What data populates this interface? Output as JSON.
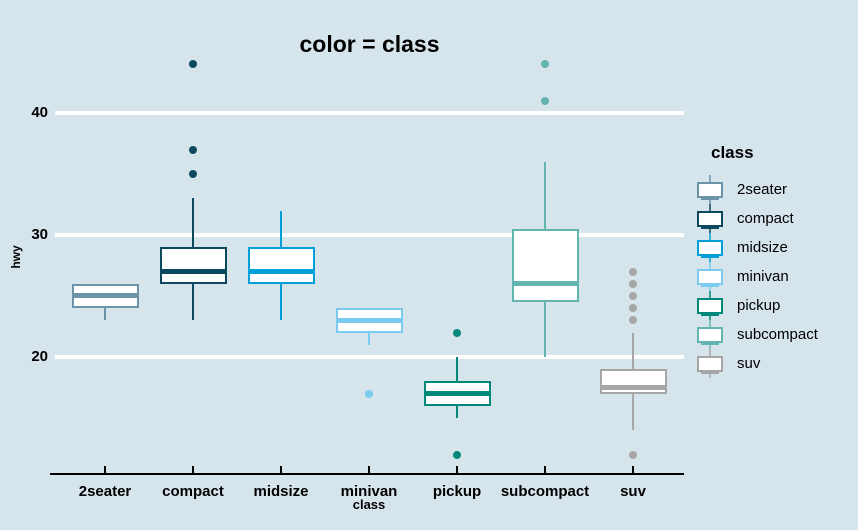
{
  "figure": {
    "background_color": "#d6e4ec",
    "grid_color": "#ffffff",
    "axis_color": "#000000",
    "text_color": "#000000"
  },
  "chart_data": {
    "type": "boxplot",
    "title": "color = class",
    "xlabel": "class",
    "ylabel": "hwy",
    "categories": [
      "2seater",
      "compact",
      "midsize",
      "minivan",
      "pickup",
      "subcompact",
      "suv"
    ],
    "y_ticks": [
      20,
      30,
      40
    ],
    "ylim": [
      10.5,
      45.5
    ],
    "grid": "horizontal white gridlines at y ticks",
    "legend": {
      "title": "class",
      "position": "right",
      "entries": [
        "2seater",
        "compact",
        "midsize",
        "minivan",
        "pickup",
        "subcompact",
        "suv"
      ]
    },
    "series": [
      {
        "name": "2seater",
        "color": "#6d93a8",
        "whisker_low": 23,
        "q1": 24,
        "median": 25,
        "q3": 26,
        "whisker_high": 26,
        "outliers": []
      },
      {
        "name": "compact",
        "color": "#0b4a5e",
        "whisker_low": 23,
        "q1": 26,
        "median": 27,
        "q3": 29,
        "whisker_high": 33,
        "outliers": [
          35,
          37,
          44
        ]
      },
      {
        "name": "midsize",
        "color": "#009fd7",
        "whisker_low": 23,
        "q1": 26,
        "median": 27,
        "q3": 29,
        "whisker_high": 32,
        "outliers": []
      },
      {
        "name": "minivan",
        "color": "#7bcaf0",
        "whisker_low": 21,
        "q1": 22,
        "median": 23,
        "q3": 24,
        "whisker_high": 24,
        "outliers": [
          17
        ]
      },
      {
        "name": "pickup",
        "color": "#00887b",
        "whisker_low": 15,
        "q1": 16,
        "median": 17,
        "q3": 18,
        "whisker_high": 20,
        "outliers": [
          12,
          22
        ]
      },
      {
        "name": "subcompact",
        "color": "#63b5af",
        "whisker_low": 20,
        "q1": 24.5,
        "median": 26,
        "q3": 30.5,
        "whisker_high": 36,
        "outliers": [
          41,
          44
        ]
      },
      {
        "name": "suv",
        "color": "#a6a6a6",
        "whisker_low": 14,
        "q1": 17,
        "median": 17.5,
        "q3": 19,
        "whisker_high": 22,
        "outliers": [
          12,
          23,
          24,
          25,
          26,
          27
        ]
      }
    ]
  }
}
